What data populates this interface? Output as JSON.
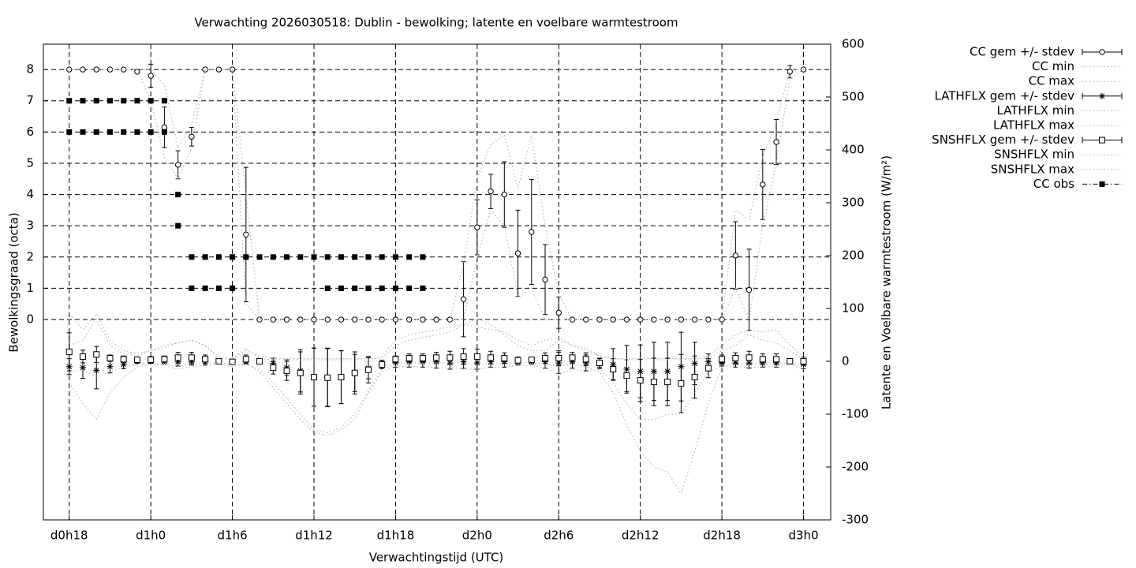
{
  "chart_data": {
    "type": "errorbar",
    "title": "Verwachting 2026030518: Dublin - bewolking; latente en voelbare warmtestroom",
    "xlabel": "Verwachtingstijd (UTC)",
    "ylabel": "Bewolkingsgraad (octa)",
    "y2label": "Latente en Voelbare warmtestroom (W/m²)",
    "grid": true,
    "legend": "right",
    "xlim": [
      16.1,
      74
    ],
    "xticks": [
      {
        "value": 18,
        "label": "d0h18"
      },
      {
        "value": 24,
        "label": "d1h0"
      },
      {
        "value": 30,
        "label": "d1h6"
      },
      {
        "value": 36,
        "label": "d1h12"
      },
      {
        "value": 42,
        "label": "d1h18"
      },
      {
        "value": 48,
        "label": "d2h0"
      },
      {
        "value": 54,
        "label": "d2h6"
      },
      {
        "value": 60,
        "label": "d2h12"
      },
      {
        "value": 66,
        "label": "d2h18"
      },
      {
        "value": 72,
        "label": "d3h0"
      }
    ],
    "ylim": [
      -6.41,
      8.81
    ],
    "yticks": [
      0,
      1,
      2,
      3,
      4,
      5,
      6,
      7,
      8
    ],
    "y2lim": [
      -300,
      600
    ],
    "y2ticks": [
      -300,
      -200,
      -100,
      0,
      100,
      200,
      300,
      400,
      500,
      600
    ],
    "x": [
      18,
      19,
      20,
      21,
      22,
      23,
      24,
      25,
      26,
      27,
      28,
      29,
      30,
      31,
      32,
      33,
      34,
      35,
      36,
      37,
      38,
      39,
      40,
      41,
      42,
      43,
      44,
      45,
      46,
      47,
      48,
      49,
      50,
      51,
      52,
      53,
      54,
      55,
      56,
      57,
      58,
      59,
      60,
      61,
      62,
      63,
      64,
      65,
      66,
      67,
      68,
      69,
      70,
      71,
      72
    ],
    "series": [
      {
        "name": "CC gem +/- stdev",
        "color": "#000000",
        "marker": "circle",
        "values": [
          8,
          8,
          8,
          8,
          8,
          7.93,
          7.8,
          6.15,
          4.95,
          5.85,
          8,
          8,
          8,
          2.72,
          0,
          0,
          0,
          0,
          0,
          0,
          0,
          0,
          0,
          0,
          0,
          0,
          0,
          0,
          0,
          0.65,
          2.95,
          4.1,
          4.0,
          2.12,
          2.8,
          1.28,
          0.22,
          0,
          0,
          0,
          0,
          0,
          0,
          0,
          0,
          0,
          0,
          0,
          0,
          2.05,
          0.95,
          4.32,
          5.68,
          7.93,
          8
        ],
        "errors": [
          0,
          0,
          0,
          0,
          0,
          0.05,
          0.37,
          0.65,
          0.45,
          0.3,
          0,
          0,
          0,
          2.15,
          0,
          0,
          0,
          0,
          0,
          0,
          0,
          0,
          0,
          0,
          0,
          0,
          0,
          0,
          0,
          1.2,
          0.88,
          0.55,
          1.05,
          1.38,
          1.68,
          1.12,
          0.5,
          0,
          0,
          0,
          0,
          0,
          0,
          0,
          0,
          0,
          0,
          0,
          0,
          1.08,
          1.3,
          1.12,
          0.72,
          0.2,
          0
        ]
      },
      {
        "name": "CC min",
        "color": "#aaaaaa",
        "line": "dotted",
        "values": [
          8,
          8,
          8,
          8,
          8,
          8,
          7,
          5.2,
          4.5,
          5.5,
          8,
          8,
          8,
          0.5,
          0,
          0,
          0,
          0,
          0,
          0,
          0,
          0,
          0,
          0,
          0,
          0,
          0,
          0,
          0,
          0,
          2,
          3.5,
          3,
          0.7,
          1,
          0,
          0,
          0,
          0,
          0,
          0,
          0,
          0,
          0,
          0,
          0,
          0,
          0,
          0,
          1,
          0,
          3,
          5,
          7.7,
          8
        ]
      },
      {
        "name": "CC max",
        "color": "#aaaaaa",
        "line": "dotted",
        "values": [
          8,
          8,
          8,
          8,
          8,
          8,
          8,
          7.5,
          5.5,
          6.2,
          8,
          8,
          8,
          4,
          0,
          0,
          0,
          0,
          0,
          0,
          0,
          0,
          0,
          0,
          0,
          0,
          0,
          0,
          0,
          1.8,
          4.5,
          5.6,
          5.9,
          4.2,
          5.9,
          3,
          0.8,
          0,
          0,
          0,
          0,
          0,
          0,
          0,
          0,
          0,
          0,
          0,
          0,
          3.5,
          3.2,
          5.2,
          6.3,
          8,
          8
        ]
      },
      {
        "name": "LATHFLX gem +/- stdev",
        "color": "#000000",
        "marker": "star",
        "axis": "y2",
        "values": [
          -10,
          -12,
          -17,
          -10,
          -6,
          0,
          0,
          0,
          -1,
          -1,
          -1,
          0,
          -1,
          0,
          0,
          -4,
          -12,
          -18,
          -30,
          -30,
          -30,
          -22,
          -13,
          -6,
          -3,
          -1,
          -1,
          -1,
          -3,
          -1,
          -3,
          -1,
          -1,
          -1,
          0,
          -1,
          -3,
          -1,
          -3,
          -4,
          -6,
          -15,
          -19,
          -19,
          -19,
          -10,
          -4,
          -1,
          -3,
          -3,
          -3,
          -3,
          -3,
          0,
          -6
        ],
        "errors": [
          15,
          20,
          35,
          12,
          8,
          4,
          4,
          5,
          8,
          6,
          6,
          2,
          3,
          5,
          2,
          10,
          15,
          40,
          55,
          55,
          50,
          40,
          20,
          8,
          8,
          10,
          10,
          12,
          12,
          12,
          12,
          10,
          10,
          6,
          5,
          12,
          20,
          12,
          15,
          10,
          30,
          45,
          50,
          55,
          55,
          65,
          40,
          15,
          6,
          8,
          10,
          8,
          8,
          3,
          8
        ]
      },
      {
        "name": "LATHFLX min",
        "color": "#aaaaaa",
        "line": "dotted",
        "axis": "y2",
        "values": [
          -40,
          -80,
          -110,
          -60,
          -30,
          -10,
          -5,
          -8,
          -15,
          -10,
          -8,
          -5,
          -10,
          -5,
          -20,
          -50,
          -80,
          -110,
          -135,
          -140,
          -130,
          -110,
          -60,
          -20,
          -10,
          -10,
          -10,
          -12,
          -12,
          -15,
          -15,
          -12,
          -10,
          -8,
          -8,
          -12,
          -25,
          -15,
          -20,
          -15,
          -40,
          -80,
          -110,
          -110,
          -100,
          -100,
          -60,
          -20,
          -10,
          -10,
          -12,
          -10,
          -10,
          -5,
          -15
        ]
      },
      {
        "name": "LATHFLX max",
        "color": "#aaaaaa",
        "line": "dotted",
        "axis": "y2",
        "values": [
          30,
          40,
          80,
          30,
          15,
          10,
          20,
          30,
          35,
          40,
          30,
          10,
          5,
          20,
          10,
          5,
          5,
          5,
          5,
          5,
          5,
          5,
          5,
          5,
          30,
          40,
          45,
          50,
          55,
          70,
          80,
          70,
          50,
          30,
          20,
          20,
          40,
          30,
          20,
          10,
          5,
          5,
          5,
          5,
          5,
          5,
          5,
          5,
          20,
          30,
          50,
          40,
          35,
          20,
          5
        ]
      },
      {
        "name": "SNSHFLX gem +/- stdev",
        "color": "#000000",
        "marker": "square",
        "axis": "y2",
        "values": [
          18,
          9,
          13,
          6,
          4,
          3,
          3,
          4,
          7,
          7,
          4,
          0,
          -1,
          4,
          0,
          -12,
          -18,
          -22,
          -30,
          -31,
          -30,
          -22,
          -16,
          -6,
          4,
          6,
          6,
          7,
          7,
          9,
          9,
          7,
          6,
          2,
          3,
          6,
          6,
          7,
          4,
          -3,
          -15,
          -27,
          -36,
          -39,
          -39,
          -42,
          -30,
          -13,
          4,
          6,
          7,
          4,
          4,
          0,
          0
        ],
        "errors": [
          36,
          12,
          15,
          6,
          6,
          4,
          6,
          6,
          10,
          10,
          8,
          2,
          2,
          8,
          2,
          12,
          18,
          40,
          55,
          55,
          50,
          35,
          25,
          8,
          6,
          8,
          8,
          10,
          12,
          15,
          14,
          12,
          10,
          6,
          5,
          10,
          14,
          10,
          12,
          8,
          20,
          30,
          40,
          45,
          45,
          55,
          40,
          18,
          8,
          10,
          12,
          10,
          10,
          2,
          8
        ]
      },
      {
        "name": "SNSHFLX min",
        "color": "#aaaaaa",
        "line": "dotted",
        "axis": "y2",
        "values": [
          -20,
          -15,
          -30,
          -20,
          -10,
          -5,
          -5,
          -5,
          -10,
          -5,
          -5,
          -3,
          -5,
          -5,
          -15,
          -40,
          -70,
          -100,
          -130,
          -135,
          -125,
          -100,
          -55,
          -15,
          -5,
          -3,
          -3,
          -3,
          -3,
          -5,
          -5,
          -5,
          -5,
          -3,
          -3,
          -5,
          -10,
          -5,
          -10,
          -20,
          -60,
          -120,
          -170,
          -200,
          -210,
          -250,
          -170,
          -80,
          -10,
          -5,
          -5,
          -5,
          -5,
          -3,
          -8
        ]
      },
      {
        "name": "SNSHFLX max",
        "color": "#aaaaaa",
        "line": "dotted",
        "axis": "y2",
        "values": [
          90,
          60,
          90,
          40,
          20,
          15,
          20,
          25,
          35,
          40,
          30,
          5,
          5,
          25,
          5,
          3,
          3,
          3,
          3,
          3,
          3,
          3,
          3,
          10,
          40,
          50,
          55,
          60,
          65,
          70,
          65,
          60,
          55,
          40,
          30,
          40,
          45,
          30,
          25,
          10,
          5,
          3,
          3,
          3,
          3,
          3,
          5,
          10,
          30,
          50,
          60,
          55,
          60,
          30,
          10
        ]
      },
      {
        "name": "CC obs",
        "color": "#000000",
        "marker": "filled-square",
        "line": "dash-dot",
        "x": [
          18,
          18,
          19,
          19,
          20,
          20,
          21,
          21,
          22,
          22,
          23,
          23,
          24,
          24,
          25,
          25,
          26,
          26,
          27,
          27,
          28,
          28,
          29,
          29,
          30,
          30,
          31,
          32,
          33,
          34,
          35,
          36,
          37,
          37,
          38,
          38,
          39,
          39,
          40,
          40,
          41,
          41,
          42,
          42,
          43,
          43,
          44,
          44
        ],
        "values": [
          7,
          6,
          7,
          6,
          7,
          6,
          7,
          6,
          7,
          6,
          7,
          6,
          7,
          6,
          7,
          6,
          4,
          3,
          2,
          1,
          2,
          1,
          2,
          1,
          2,
          1,
          2,
          2,
          2,
          2,
          2,
          2,
          2,
          1,
          2,
          1,
          2,
          1,
          2,
          1,
          2,
          1,
          2,
          1,
          2,
          1,
          2,
          1
        ]
      }
    ]
  }
}
